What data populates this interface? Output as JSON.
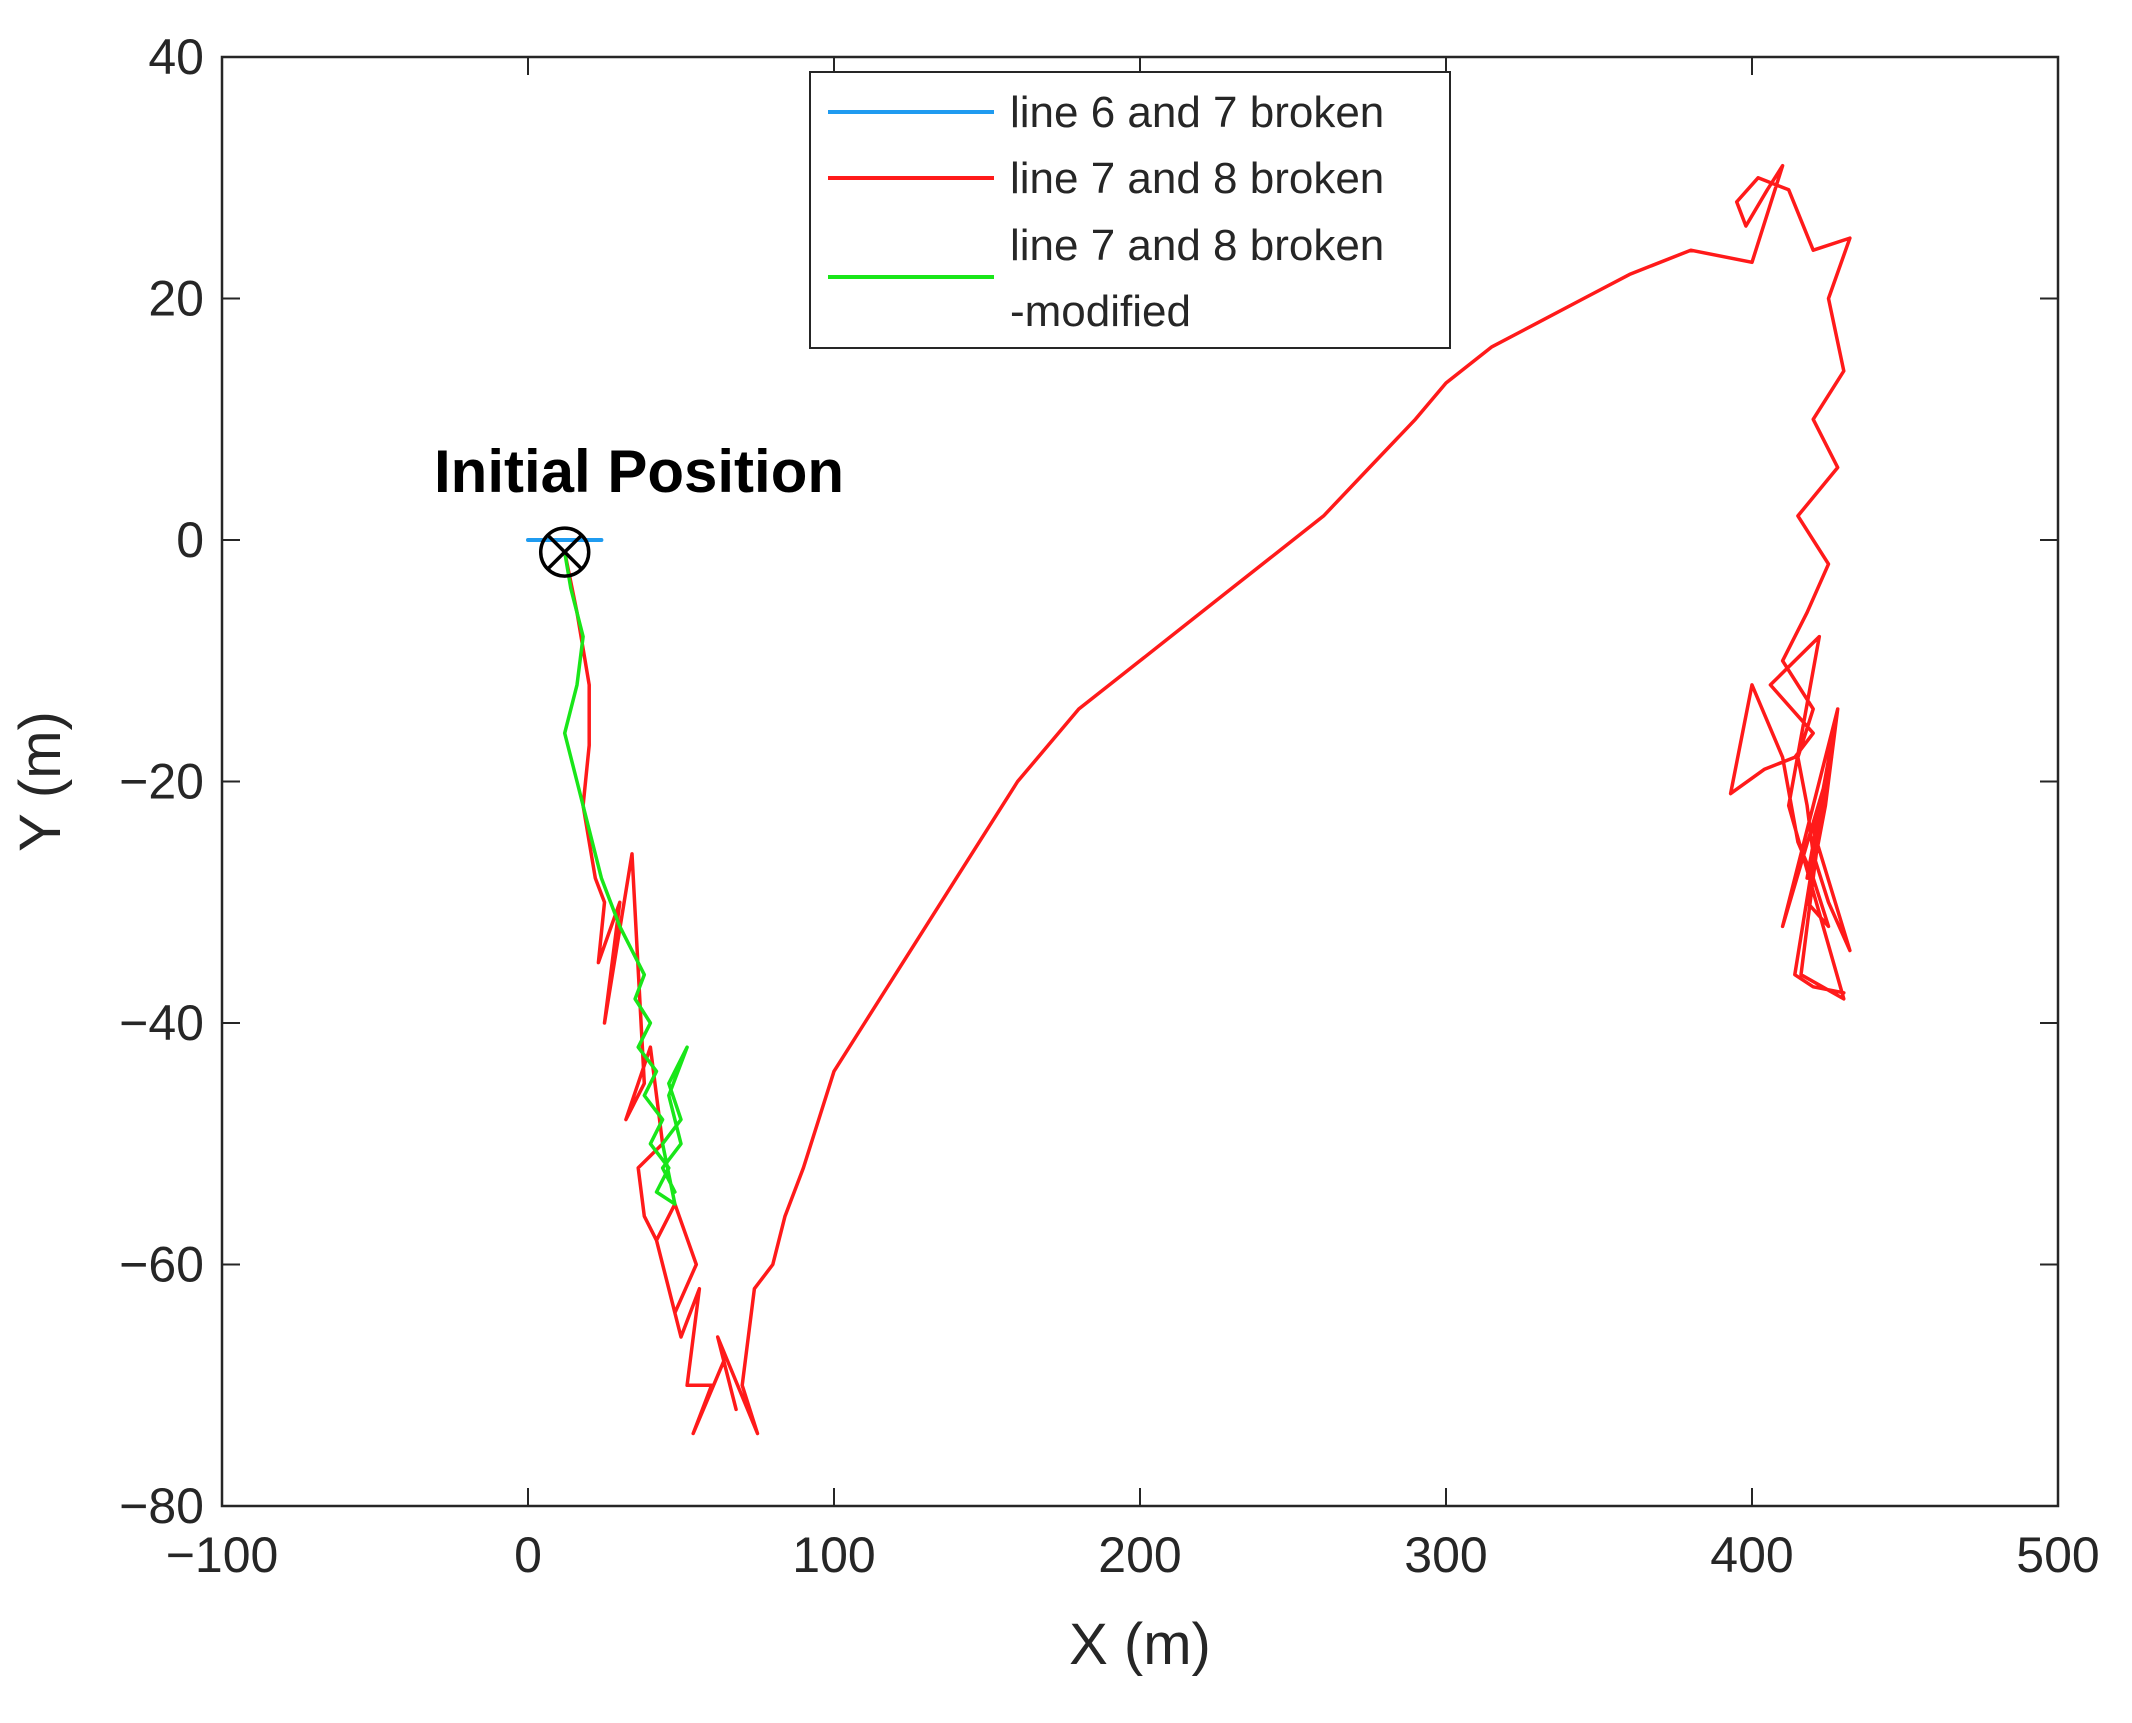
{
  "chart_data": {
    "type": "line",
    "title": "",
    "xlabel": "X (m)",
    "ylabel": "Y (m)",
    "xlim": [
      -100,
      500
    ],
    "ylim": [
      -80,
      40
    ],
    "xticks": [
      -100,
      0,
      100,
      200,
      300,
      400,
      500
    ],
    "yticks": [
      -80,
      -60,
      -40,
      -20,
      0,
      20,
      40
    ],
    "xtick_labels": [
      "−100",
      "0",
      "100",
      "200",
      "300",
      "400",
      "500"
    ],
    "ytick_labels": [
      "−80",
      "−60",
      "−40",
      "−20",
      "0",
      "20",
      "40"
    ],
    "grid": false,
    "legend_position": "top-center",
    "annotation": {
      "text": "Initial Position",
      "marker": "circle-x",
      "x": 12,
      "y": -1
    },
    "series": [
      {
        "name": "line 6 and 7 broken",
        "color": "#1f9bf0",
        "x": [
          0,
          12,
          24
        ],
        "y": [
          0,
          0,
          0
        ]
      },
      {
        "name": "line 7 and 8 broken",
        "color": "#ff1a1a",
        "x": [
          12,
          16,
          20,
          20,
          18,
          22,
          25,
          23,
          30,
          25,
          34,
          38,
          32,
          40,
          44,
          36,
          38,
          42,
          48,
          55,
          48,
          42,
          50,
          56,
          52,
          60,
          54,
          64,
          68,
          62,
          75,
          70,
          74,
          80,
          84,
          90,
          95,
          100,
          110,
          120,
          130,
          140,
          150,
          160,
          170,
          180,
          190,
          200,
          215,
          230,
          245,
          260,
          275,
          290,
          300,
          315,
          330,
          345,
          360,
          380,
          400,
          410,
          405,
          398,
          395,
          402,
          412,
          420,
          432,
          425,
          430,
          420,
          428,
          415,
          425,
          418,
          410,
          420,
          415,
          418,
          420,
          425,
          432,
          420,
          426,
          418,
          428,
          410,
          424,
          416,
          430,
          412,
          422,
          406,
          420,
          414,
          404,
          393,
          400,
          410,
          415,
          420,
          425,
          418,
          424,
          428,
          414,
          420,
          430
        ],
        "y": [
          -1,
          -6,
          -12,
          -17,
          -22,
          -28,
          -30,
          -35,
          -30,
          -40,
          -26,
          -45,
          -48,
          -42,
          -50,
          -52,
          -56,
          -58,
          -55,
          -60,
          -64,
          -58,
          -66,
          -62,
          -70,
          -70,
          -74,
          -68,
          -72,
          -66,
          -74,
          -70,
          -62,
          -60,
          -56,
          -52,
          -48,
          -44,
          -40,
          -36,
          -32,
          -28,
          -24,
          -20,
          -17,
          -14,
          -12,
          -10,
          -7,
          -4,
          -1,
          2,
          6,
          10,
          13,
          16,
          18,
          20,
          22,
          24,
          23,
          31,
          29,
          26,
          28,
          30,
          29,
          24,
          25,
          20,
          14,
          10,
          6,
          2,
          -2,
          -6,
          -10,
          -14,
          -18,
          -22,
          -26,
          -30,
          -34,
          -24,
          -18,
          -28,
          -14,
          -32,
          -20,
          -36,
          -38,
          -22,
          -8,
          -12,
          -16,
          -18,
          -19,
          -21,
          -12,
          -18,
          -25,
          -28,
          -32,
          -30,
          -22,
          -14,
          -36,
          -37,
          -37.5
        ]
      },
      {
        "name": "line 7 and 8 broken -modified",
        "color": "#19e619",
        "x": [
          12,
          14,
          18,
          16,
          12,
          16,
          20,
          22,
          24,
          27,
          30,
          34,
          38,
          35,
          40,
          36,
          42,
          38,
          44,
          40,
          46,
          42,
          48,
          44,
          50,
          46,
          52,
          46,
          50,
          44,
          48
        ],
        "y": [
          -1,
          -4,
          -8,
          -12,
          -16,
          -20,
          -24,
          -26,
          -28,
          -30,
          -32,
          -34,
          -36,
          -38,
          -40,
          -42,
          -44,
          -46,
          -48,
          -50,
          -52,
          -54,
          -55,
          -50,
          -48,
          -45,
          -42,
          -46,
          -50,
          -52,
          -54
        ]
      }
    ]
  }
}
